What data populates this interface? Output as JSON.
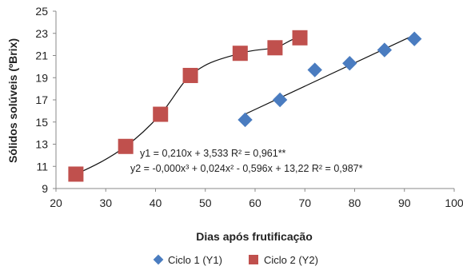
{
  "chart_data": {
    "type": "scatter",
    "xlabel": "Dias após frutificação",
    "ylabel": "Sólidos solúveis (ºBrix)",
    "xlim": [
      20,
      100
    ],
    "ylim": [
      9,
      25
    ],
    "xticks": [
      20,
      30,
      40,
      50,
      60,
      70,
      80,
      90,
      100
    ],
    "yticks": [
      9,
      11,
      13,
      15,
      17,
      19,
      21,
      23,
      25
    ],
    "grid": false,
    "legend_position": "bottom",
    "series": [
      {
        "name": "Ciclo 1 (Y1)",
        "marker": "diamond",
        "color": "#4a7cc0",
        "x": [
          58,
          65,
          72,
          79,
          86,
          92
        ],
        "y": [
          15.2,
          17.0,
          19.7,
          20.3,
          21.5,
          22.5
        ],
        "trendline": {
          "type": "linear",
          "x_range": [
            58,
            92
          ],
          "coefficients": [
            0.21,
            3.533
          ]
        }
      },
      {
        "name": "Ciclo 2 (Y2)",
        "marker": "square",
        "color": "#c0504d",
        "x": [
          24,
          34,
          41,
          47,
          57,
          64,
          69
        ],
        "y": [
          10.3,
          12.8,
          15.7,
          19.2,
          21.2,
          21.7,
          22.6
        ],
        "trendline": {
          "type": "polynomial",
          "x_range": [
            24,
            69
          ],
          "coefficients": [
            0,
            0.024,
            -0.596,
            13.22
          ]
        }
      }
    ],
    "annotations": [
      "y1 = 0,210x + 3,533 R² = 0,961**",
      "y2 = -0,000x³ + 0,024x² - 0,596x + 13,22 R² = 0,987*"
    ]
  }
}
